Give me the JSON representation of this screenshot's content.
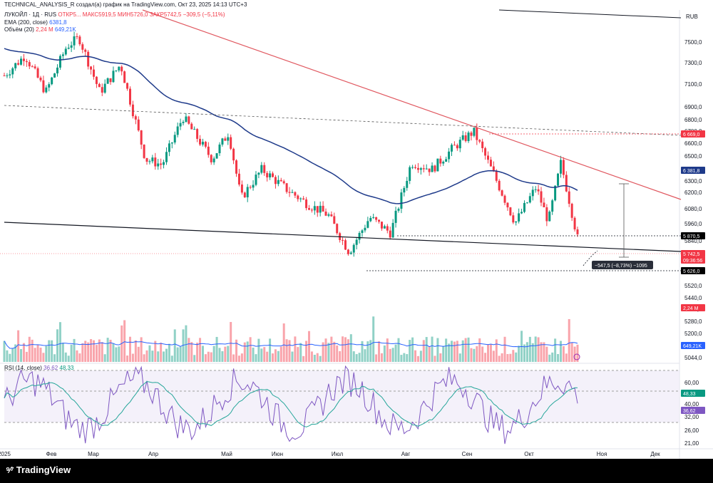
{
  "header": {
    "text": "TECHNICAL_ANALYSIS_R создал(а) график на TradingView.com, Окт 23, 2025 14:13 UTC+3"
  },
  "legend": {
    "symbol": "ЛУКОЙЛ · 1Д · RUS",
    "ohlc": "ОТКР5... МАКС5919,5 МИН5726,0 ЗАКР5742,5 −309,5 (−5,11%)",
    "ema": "EMA (200, close)",
    "ema_value": "6381,8",
    "volume": "Объём (20)",
    "volume_value": "2,24 M",
    "volume_value2": "649,21K",
    "rsi": "RSI (14, close)",
    "rsi_value1": "36,62",
    "rsi_value2": "48,33"
  },
  "currency": "RUB",
  "price_axis": [
    "7500,0",
    "7300,0",
    "7100,0",
    "6900,0",
    "6800,0",
    "6700,0",
    "6600,0",
    "6500,0",
    "6300,0",
    "6200,0",
    "6080,0",
    "5960,0",
    "5840,0",
    "5520,0",
    "5440,0",
    "5360,0",
    "5280,0",
    "5200,0",
    "5120,0",
    "5044,0"
  ],
  "price_tags": [
    {
      "label": "6 669,0",
      "color": "#f23645"
    },
    {
      "label": "6 381,8",
      "color": "#1e3a8a"
    },
    {
      "label": "5 870,5",
      "color": "#000000"
    },
    {
      "label": "5 742,5",
      "color": "#f23645"
    },
    {
      "label": "09:36:56",
      "color": "#f23645"
    },
    {
      "label": "5 626,0",
      "color": "#000000"
    },
    {
      "label": "2,24 M",
      "color": "#f23645"
    },
    {
      "label": "649,21K",
      "color": "#2962ff"
    },
    {
      "label": "48,33",
      "color": "#089981"
    },
    {
      "label": "36,62",
      "color": "#7e57c2"
    }
  ],
  "rsi_axis": [
    "60,00",
    "40,00",
    "32,00",
    "26,00",
    "21,00"
  ],
  "time_axis": [
    "2025",
    "Фев",
    "Мар",
    "Апр",
    "Май",
    "Июн",
    "Июл",
    "Авг",
    "Сен",
    "Окт",
    "Ноя",
    "Дек"
  ],
  "measure_label": "−547,5 (−8,73%) −1095",
  "footer": {
    "logo": "TradingView"
  },
  "colors": {
    "up": "#089981",
    "down": "#f23645",
    "ema": "#1e3a8a",
    "resistance": "#e0575f",
    "rsi": "#7e57c2",
    "rsi_ma": "#26a69a",
    "rsi_band": "#ede7f6"
  },
  "chart_data": {
    "type": "candlestick",
    "ticker": "ЛУКОЙЛ",
    "timeframe": "1Д",
    "currency": "RUB",
    "last_close": 5742.5,
    "last_change": -309.5,
    "last_change_pct": -5.11,
    "ema200": 6381.8,
    "levels": [
      6669.0,
      5870.5,
      5626.0
    ],
    "volume_last": "2,24 M",
    "volume_ma": "649,21K",
    "rsi": 36.62,
    "rsi_ma": 48.33,
    "months": [
      "2025",
      "Фев",
      "Мар",
      "Апр",
      "Май",
      "Июн",
      "Июл",
      "Авг",
      "Сен",
      "Окт",
      "Ноя",
      "Дек"
    ],
    "close_path": [
      [
        "2025",
        7200
      ],
      [
        "Фев",
        7450
      ],
      [
        "Мар",
        7350
      ],
      [
        "Апр",
        6400
      ],
      [
        "Май",
        6950
      ],
      [
        "Июн",
        6500
      ],
      [
        "Июл",
        5700
      ],
      [
        "Авг",
        5900
      ],
      [
        "Сен",
        6450
      ],
      [
        "Окт",
        5850
      ],
      [
        "Окт",
        6420
      ],
      [
        "Окт",
        5742.5
      ]
    ]
  }
}
